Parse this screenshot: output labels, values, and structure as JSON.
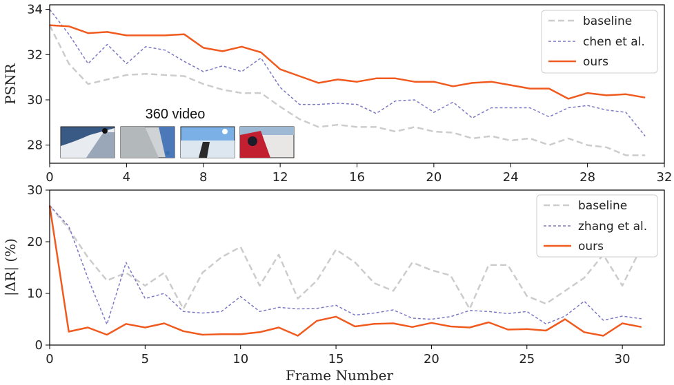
{
  "chart_data": [
    {
      "type": "line",
      "title": "",
      "xlabel": "",
      "ylabel": "PSNR",
      "xlim": [
        0,
        32
      ],
      "ylim": [
        27.2,
        34.2
      ],
      "xticks": [
        0,
        4,
        8,
        12,
        16,
        20,
        24,
        28,
        32
      ],
      "yticks": [
        28,
        30,
        32,
        34
      ],
      "legend_position": "top-right",
      "annotation": "360 video",
      "x": [
        0,
        1,
        2,
        3,
        4,
        5,
        6,
        7,
        8,
        9,
        10,
        11,
        12,
        13,
        14,
        15,
        16,
        17,
        18,
        19,
        20,
        21,
        22,
        23,
        24,
        25,
        26,
        27,
        28,
        29,
        30,
        31
      ],
      "series": [
        {
          "name": "baseline",
          "color": "#cccccc",
          "style": "dashed-long",
          "values": [
            33.3,
            31.6,
            30.7,
            30.9,
            31.1,
            31.15,
            31.1,
            31.05,
            30.7,
            30.45,
            30.3,
            30.3,
            29.7,
            29.15,
            28.8,
            28.9,
            28.8,
            28.8,
            28.6,
            28.8,
            28.6,
            28.55,
            28.3,
            28.4,
            28.2,
            28.3,
            28.0,
            28.3,
            28.0,
            27.9,
            27.55,
            27.55
          ]
        },
        {
          "name": "chen et al.",
          "color": "#7b78c4",
          "style": "dashed-short",
          "values": [
            34.0,
            32.9,
            31.6,
            32.45,
            31.6,
            32.35,
            32.2,
            31.7,
            31.25,
            31.5,
            31.25,
            31.85,
            30.55,
            29.8,
            29.8,
            29.85,
            29.8,
            29.4,
            29.95,
            30.0,
            29.45,
            29.9,
            29.2,
            29.65,
            29.65,
            29.65,
            29.25,
            29.65,
            29.75,
            29.55,
            29.45,
            28.4
          ]
        },
        {
          "name": "ours",
          "color": "#f05a1e",
          "style": "solid",
          "values": [
            33.3,
            33.25,
            32.95,
            33.0,
            32.85,
            32.85,
            32.85,
            32.9,
            32.3,
            32.15,
            32.35,
            32.1,
            31.35,
            31.05,
            30.75,
            30.9,
            30.8,
            30.95,
            30.95,
            30.8,
            30.8,
            30.6,
            30.75,
            30.8,
            30.65,
            30.5,
            30.5,
            30.05,
            30.3,
            30.2,
            30.25,
            30.1
          ]
        }
      ]
    },
    {
      "type": "line",
      "title": "",
      "xlabel": "Frame Number",
      "ylabel": "|ΔR| (%)",
      "xlim": [
        0,
        32.2
      ],
      "ylim": [
        0,
        30
      ],
      "xticks": [
        0,
        5,
        10,
        15,
        20,
        25,
        30
      ],
      "yticks": [
        0,
        10,
        20,
        30
      ],
      "legend_position": "top-right",
      "x": [
        0,
        1,
        2,
        3,
        4,
        5,
        6,
        7,
        8,
        9,
        10,
        11,
        12,
        13,
        14,
        15,
        16,
        17,
        18,
        19,
        20,
        21,
        22,
        23,
        24,
        25,
        26,
        27,
        28,
        29,
        30,
        31
      ],
      "series": [
        {
          "name": "baseline",
          "color": "#cccccc",
          "style": "dashed-long",
          "values": [
            27.0,
            22.5,
            17.0,
            12.5,
            14.0,
            11.5,
            14.0,
            7.0,
            14.0,
            17.0,
            19.0,
            11.5,
            17.5,
            9.0,
            12.5,
            18.5,
            16.0,
            12.0,
            10.5,
            16.0,
            14.5,
            13.5,
            7.0,
            15.5,
            15.5,
            9.5,
            8.0,
            10.5,
            13.0,
            17.5,
            11.5,
            19.0
          ]
        },
        {
          "name": "zhang et al.",
          "color": "#7b78c4",
          "style": "dashed-short",
          "values": [
            27.0,
            23.0,
            13.0,
            4.0,
            16.0,
            9.0,
            10.0,
            6.5,
            6.2,
            6.5,
            9.4,
            6.5,
            7.3,
            7.0,
            7.1,
            7.7,
            5.8,
            6.2,
            6.8,
            5.2,
            5.0,
            5.5,
            6.7,
            6.5,
            6.1,
            6.5,
            4.1,
            5.6,
            8.5,
            4.8,
            5.6,
            5.1
          ]
        },
        {
          "name": "ours",
          "color": "#f05a1e",
          "style": "solid",
          "values": [
            27.0,
            2.6,
            3.4,
            2.0,
            4.1,
            3.4,
            4.2,
            2.7,
            2.0,
            2.1,
            2.1,
            2.5,
            3.4,
            1.8,
            4.7,
            5.5,
            3.6,
            4.1,
            4.2,
            3.5,
            4.3,
            3.6,
            3.4,
            4.4,
            3.0,
            3.1,
            2.8,
            5.0,
            2.5,
            1.8,
            4.2,
            3.5
          ]
        }
      ]
    }
  ]
}
